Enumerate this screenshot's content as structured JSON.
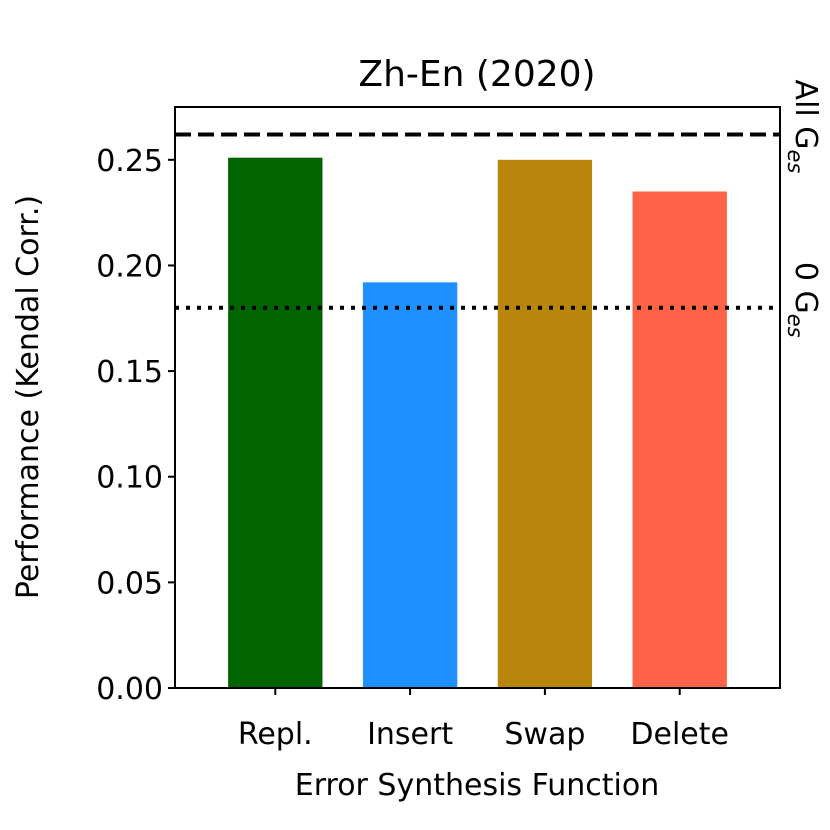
{
  "chart_data": {
    "type": "bar",
    "title": "Zh-En (2020)",
    "x_label": "Error Synthesis Function",
    "y_label": "Performance (Kendal Corr.)",
    "categories": [
      "Repl.",
      "Insert",
      "Swap",
      "Delete"
    ],
    "values": [
      0.251,
      0.192,
      0.25,
      0.235
    ],
    "colors": [
      "#006400",
      "#1e90ff",
      "#b8860b",
      "#ff6347"
    ],
    "ylim": [
      0,
      0.275
    ],
    "yticks": [
      {
        "value": 0,
        "label": "0.00"
      },
      {
        "value": 0.05,
        "label": "0.05"
      },
      {
        "value": 0.1,
        "label": "0.10"
      },
      {
        "value": 0.15,
        "label": "0.15"
      },
      {
        "value": 0.2,
        "label": "0.20"
      },
      {
        "value": 0.25,
        "label": "0.25"
      }
    ],
    "reference_lines": [
      {
        "label": "All G",
        "label_sub": "es",
        "value": 0.262,
        "style": "dashed"
      },
      {
        "label": "0 G",
        "label_sub": "es",
        "value": 0.18,
        "style": "dotted"
      }
    ]
  }
}
